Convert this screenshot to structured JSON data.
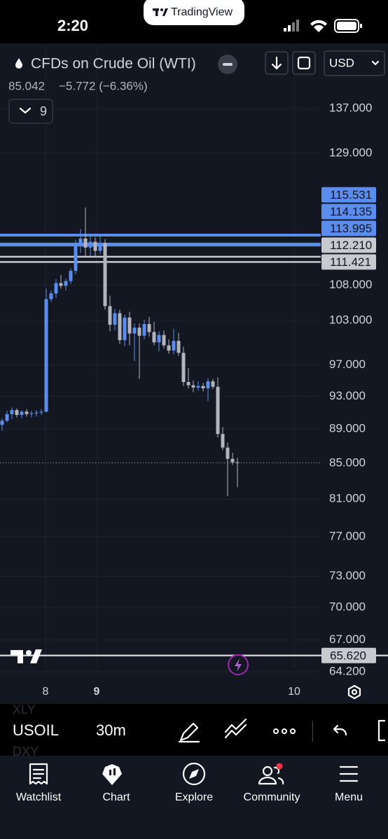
{
  "status_bar": {
    "time": "2:20",
    "banner": "TradingView"
  },
  "header": {
    "symbol": "CFDs on Crude Oil (WTI)",
    "currency": "USD",
    "price": "85.042",
    "change": "−5.772 (−6.36%)",
    "indicator_count": "9"
  },
  "chart_data": {
    "type": "candlestick",
    "log_scale": true,
    "grid": true,
    "up_color": "#5b8def",
    "down_color": "#b2b5be",
    "ylim": [
      63.3,
      149.1
    ],
    "yticks": [
      {
        "value": 137,
        "label": "137.000"
      },
      {
        "value": 129,
        "label": "129.000"
      },
      {
        "value": 108,
        "label": "108.000"
      },
      {
        "value": 103,
        "label": "103.000"
      },
      {
        "value": 97,
        "label": "97.000"
      },
      {
        "value": 93,
        "label": "93.000"
      },
      {
        "value": 89,
        "label": "89.000"
      },
      {
        "value": 85,
        "label": "85.000"
      },
      {
        "value": 81,
        "label": "81.000"
      },
      {
        "value": 77,
        "label": "77.000"
      },
      {
        "value": 73,
        "label": "73.000"
      },
      {
        "value": 70,
        "label": "70.000"
      },
      {
        "value": 67,
        "label": "67.000"
      },
      {
        "value": 64.2,
        "label": "64.200"
      }
    ],
    "x_labels": [
      "8",
      "9",
      "10"
    ],
    "candles": [
      [
        89.5,
        90.3,
        88.8,
        90.0
      ],
      [
        90.0,
        91.2,
        89.8,
        90.8
      ],
      [
        90.8,
        91.6,
        90.2,
        91.3
      ],
      [
        91.3,
        91.5,
        90.4,
        90.7
      ],
      [
        90.7,
        91.3,
        90.3,
        91.1
      ],
      [
        91.1,
        91.4,
        90.5,
        90.8
      ],
      [
        90.8,
        91.2,
        90.4,
        90.9
      ],
      [
        90.9,
        91.3,
        90.5,
        91.0
      ],
      [
        91.0,
        91.4,
        90.7,
        91.1
      ],
      [
        91.1,
        107.5,
        91.0,
        106.0
      ],
      [
        106.0,
        107.2,
        105.6,
        106.8
      ],
      [
        106.8,
        108.9,
        106.2,
        108.3
      ],
      [
        108.3,
        109.5,
        107.5,
        107.9
      ],
      [
        107.9,
        109.0,
        107.2,
        108.6
      ],
      [
        108.6,
        110.5,
        108.2,
        110.1
      ],
      [
        110.1,
        114.8,
        109.6,
        114.2
      ],
      [
        114.2,
        116.5,
        112.8,
        115.0
      ],
      [
        115.0,
        119.9,
        112.3,
        113.6
      ],
      [
        113.6,
        115.5,
        112.4,
        114.5
      ],
      [
        114.5,
        115.2,
        112.2,
        113.1
      ],
      [
        113.1,
        115.6,
        112.6,
        114.3
      ],
      [
        114.3,
        114.9,
        104.5,
        105.0
      ],
      [
        105.0,
        106.5,
        101.5,
        102.4
      ],
      [
        102.4,
        104.6,
        101.6,
        104.0
      ],
      [
        104.0,
        104.5,
        99.8,
        100.3
      ],
      [
        100.3,
        103.8,
        99.5,
        103.4
      ],
      [
        103.4,
        104.2,
        99.6,
        101.2
      ],
      [
        101.2,
        102.6,
        97.5,
        102.0
      ],
      [
        102.0,
        102.6,
        95.2,
        100.9
      ],
      [
        100.9,
        103.1,
        100.4,
        102.5
      ],
      [
        102.5,
        103.5,
        100.8,
        101.4
      ],
      [
        101.4,
        102.8,
        99.6,
        100.0
      ],
      [
        100.0,
        101.5,
        98.8,
        101.0
      ],
      [
        101.0,
        101.6,
        99.2,
        99.6
      ],
      [
        99.6,
        100.4,
        98.5,
        98.9
      ],
      [
        98.9,
        101.8,
        98.4,
        100.2
      ],
      [
        100.2,
        101.3,
        98.2,
        98.6
      ],
      [
        98.6,
        99.4,
        94.3,
        94.8
      ],
      [
        94.8,
        96.6,
        94.0,
        94.4
      ],
      [
        94.4,
        95.0,
        93.5,
        94.1
      ],
      [
        94.1,
        94.9,
        93.7,
        94.3
      ],
      [
        94.3,
        94.7,
        93.6,
        94.0
      ],
      [
        94.0,
        95.3,
        92.4,
        94.9
      ],
      [
        94.9,
        95.2,
        93.9,
        94.2
      ],
      [
        94.2,
        95.4,
        88.0,
        88.4
      ],
      [
        88.4,
        89.2,
        86.5,
        86.8
      ],
      [
        86.8,
        87.4,
        81.3,
        85.5
      ],
      [
        85.5,
        86.2,
        84.8,
        85.1
      ],
      [
        85.1,
        85.6,
        82.3,
        85.042
      ]
    ],
    "levels": [
      {
        "value": 115.531,
        "label": "115.531",
        "color": "#5b8def"
      },
      {
        "value": 114.135,
        "label": "114.135",
        "color": "#5b8def"
      },
      {
        "value": 113.995,
        "label": "113.995",
        "color": "#5b8def"
      },
      {
        "value": 112.21,
        "label": "112.210",
        "color": "#c8cad0"
      },
      {
        "value": 111.421,
        "label": "111.421",
        "color": "#c8cad0"
      },
      {
        "value": 65.62,
        "label": "65.620",
        "color": "#c8cad0"
      }
    ]
  },
  "toolbar": {
    "symbol_above": "XLY",
    "symbol": "USOIL",
    "symbol_below": "DXY",
    "interval": "30m"
  },
  "nav": [
    "Watchlist",
    "Chart",
    "Explore",
    "Community",
    "Menu"
  ]
}
